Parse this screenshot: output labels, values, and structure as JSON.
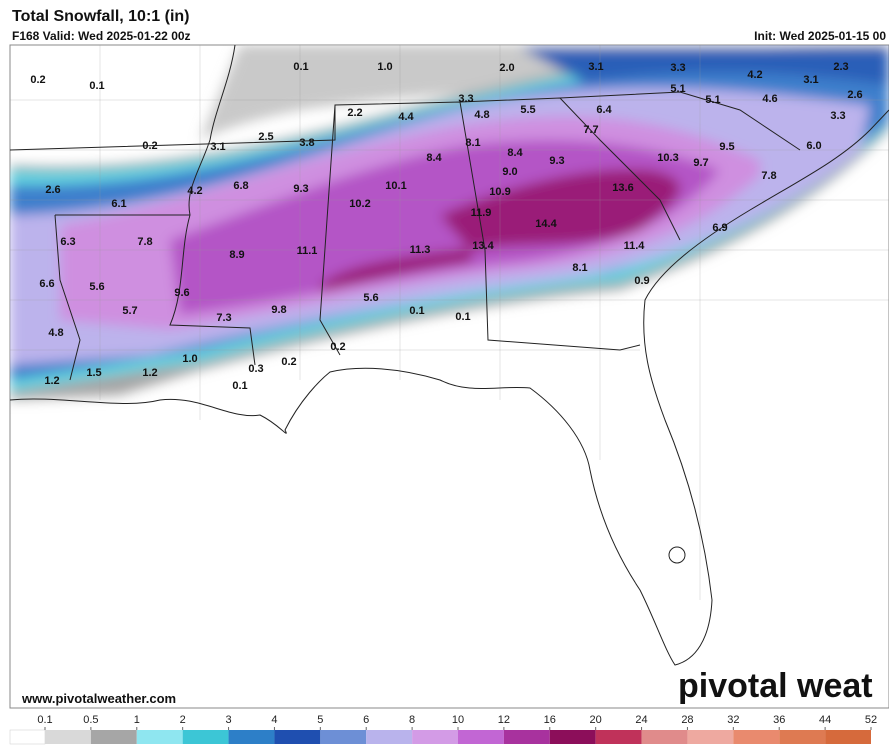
{
  "header": {
    "title": "Total Snowfall, 10:1 (in)",
    "subtitle": "F168 Valid: Wed 2025-01-22 00z",
    "init": "Init: Wed 2025-01-15 00"
  },
  "map": {
    "labels": [
      "0.2",
      "0.1",
      "0.1",
      "1.0",
      "2.0",
      "3.1",
      "3.3",
      "2.3",
      "4.2",
      "3.1",
      "5.1",
      "5.1",
      "4.6",
      "2.6",
      "3.3",
      "2.2",
      "4.4",
      "4.8",
      "5.5",
      "6.4",
      "7.7",
      "3.3",
      "0.2",
      "3.1",
      "2.5",
      "3.8",
      "8.1",
      "8.4",
      "8.4",
      "9.3",
      "9.0",
      "10.3",
      "9.7",
      "9.5",
      "6.0",
      "2.6",
      "6.1",
      "6.8",
      "9.3",
      "10.1",
      "10.9",
      "13.6",
      "7.8",
      "4.2",
      "10.2",
      "11.9",
      "14.4",
      "6.3",
      "7.8",
      "8.9",
      "11.1",
      "11.3",
      "13.4",
      "11.4",
      "6.9",
      "8.1",
      "6.6",
      "5.6",
      "9.6",
      "0.9",
      "5.7",
      "9.8",
      "5.6",
      "0.1",
      "0.1",
      "7.3",
      "4.8",
      "1.0",
      "0.2",
      "0.2",
      "0.3",
      "1.5",
      "1.2",
      "1.2",
      "0.1"
    ]
  },
  "footer": {
    "website": "www.pivotalweather.com",
    "logo": "pivotal weat"
  },
  "legend": {
    "ticks": [
      0.1,
      0.5,
      1,
      2,
      3,
      4,
      5,
      6,
      8,
      10,
      12,
      16,
      20,
      24,
      28,
      32,
      36,
      44,
      52
    ],
    "colors": [
      "#d9d9d9",
      "#a6a6a6",
      "#8fe6f0",
      "#3cc6d6",
      "#2d7fc8",
      "#1f4fb0",
      "#6d8fd6",
      "#b9b3ec",
      "#d39be6",
      "#c266d4",
      "#a8329e",
      "#8c0e5a",
      "#c0325a",
      "#e08b8b",
      "#eea9a0",
      "#e98a6e",
      "#de7a52",
      "#d66a3c"
    ]
  }
}
